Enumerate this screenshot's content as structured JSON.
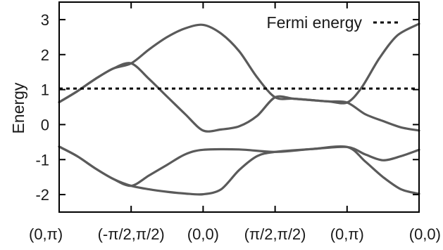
{
  "chart_data": {
    "type": "line",
    "title": "",
    "xlabel": "",
    "ylabel": "Energy",
    "ylim": [
      -2.5,
      3.5
    ],
    "xlim": [
      0,
      5
    ],
    "grid": false,
    "legend_position": "top-right",
    "x_ticks": [
      {
        "x": 0,
        "label": "(0,π)"
      },
      {
        "x": 1,
        "label": "(-π/2,π/2)"
      },
      {
        "x": 2,
        "label": "(0,0)"
      },
      {
        "x": 3,
        "label": "(π/2,π/2)"
      },
      {
        "x": 4,
        "label": "(0,π)"
      },
      {
        "x": 5,
        "label": "(0,0)"
      }
    ],
    "y_ticks": [
      {
        "y": 3,
        "label": "3"
      },
      {
        "y": 2,
        "label": "2"
      },
      {
        "y": 1,
        "label": "1"
      },
      {
        "y": 0,
        "label": "0"
      },
      {
        "y": -1,
        "label": "-1"
      },
      {
        "y": -2,
        "label": "-2"
      }
    ],
    "series": [
      {
        "role": "band",
        "color": "#5a5a5a",
        "points": [
          [
            0,
            0.64
          ],
          [
            0.25,
            0.95
          ],
          [
            0.5,
            1.3
          ],
          [
            0.75,
            1.6
          ],
          [
            1,
            1.75
          ],
          [
            1.25,
            2.15
          ],
          [
            1.5,
            2.5
          ],
          [
            1.75,
            2.75
          ],
          [
            2,
            2.85
          ],
          [
            2.25,
            2.6
          ],
          [
            2.5,
            2.1
          ],
          [
            2.75,
            1.35
          ],
          [
            3,
            0.78
          ],
          [
            3.25,
            0.74
          ],
          [
            3.5,
            0.7
          ],
          [
            3.75,
            0.66
          ],
          [
            4,
            0.63
          ],
          [
            4.2,
            1.05
          ],
          [
            4.45,
            1.9
          ],
          [
            4.7,
            2.55
          ],
          [
            5,
            2.88
          ]
        ]
      },
      {
        "role": "band",
        "color": "#5a5a5a",
        "points": [
          [
            0,
            0.64
          ],
          [
            0.25,
            0.95
          ],
          [
            0.5,
            1.3
          ],
          [
            0.75,
            1.6
          ],
          [
            1,
            1.75
          ],
          [
            1.25,
            1.3
          ],
          [
            1.5,
            0.8
          ],
          [
            1.75,
            0.3
          ],
          [
            2,
            -0.17
          ],
          [
            2.25,
            -0.14
          ],
          [
            2.5,
            -0.05
          ],
          [
            2.75,
            0.25
          ],
          [
            3,
            0.78
          ],
          [
            3.25,
            0.74
          ],
          [
            3.5,
            0.7
          ],
          [
            3.75,
            0.66
          ],
          [
            4,
            0.63
          ],
          [
            4.25,
            0.3
          ],
          [
            4.5,
            0.1
          ],
          [
            4.75,
            -0.08
          ],
          [
            5,
            -0.17
          ]
        ]
      },
      {
        "role": "band",
        "color": "#5a5a5a",
        "points": [
          [
            0,
            -0.63
          ],
          [
            0.25,
            -0.9
          ],
          [
            0.5,
            -1.25
          ],
          [
            0.75,
            -1.55
          ],
          [
            1,
            -1.75
          ],
          [
            1.25,
            -1.45
          ],
          [
            1.5,
            -1.15
          ],
          [
            1.75,
            -0.85
          ],
          [
            2,
            -0.72
          ],
          [
            2.5,
            -0.71
          ],
          [
            3,
            -0.78
          ],
          [
            3.5,
            -0.7
          ],
          [
            4,
            -0.64
          ],
          [
            4.25,
            -0.85
          ],
          [
            4.5,
            -1.02
          ],
          [
            4.75,
            -0.9
          ],
          [
            5,
            -0.72
          ]
        ]
      },
      {
        "role": "band",
        "color": "#5a5a5a",
        "points": [
          [
            0,
            -0.63
          ],
          [
            0.25,
            -0.9
          ],
          [
            0.5,
            -1.25
          ],
          [
            0.75,
            -1.55
          ],
          [
            1,
            -1.75
          ],
          [
            1.25,
            -1.85
          ],
          [
            1.5,
            -1.92
          ],
          [
            1.75,
            -1.97
          ],
          [
            2,
            -1.99
          ],
          [
            2.25,
            -1.85
          ],
          [
            2.5,
            -1.3
          ],
          [
            2.75,
            -0.9
          ],
          [
            3,
            -0.78
          ],
          [
            3.5,
            -0.7
          ],
          [
            4,
            -0.64
          ],
          [
            4.25,
            -1.05
          ],
          [
            4.5,
            -1.5
          ],
          [
            4.75,
            -1.85
          ],
          [
            5,
            -1.98
          ]
        ]
      },
      {
        "role": "fermi",
        "name": "Fermi energy",
        "color": "#000000",
        "dashed": true,
        "points": [
          [
            0,
            1.03
          ],
          [
            5,
            1.03
          ]
        ]
      }
    ]
  }
}
